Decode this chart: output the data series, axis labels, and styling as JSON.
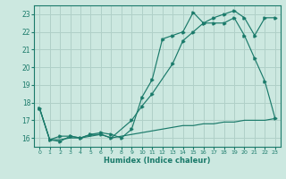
{
  "xlabel": "Humidex (Indice chaleur)",
  "bg_color": "#cce8e0",
  "grid_color": "#b0d0c8",
  "line_color": "#1a7a6a",
  "xlim": [
    -0.5,
    23.5
  ],
  "ylim": [
    15.5,
    23.5
  ],
  "yticks": [
    16,
    17,
    18,
    19,
    20,
    21,
    22,
    23
  ],
  "xticks": [
    0,
    1,
    2,
    3,
    4,
    5,
    6,
    7,
    8,
    9,
    10,
    11,
    12,
    13,
    14,
    15,
    16,
    17,
    18,
    19,
    20,
    21,
    22,
    23
  ],
  "line1_x": [
    0,
    1,
    2,
    3,
    4,
    5,
    6,
    7,
    8,
    9,
    10,
    11,
    12,
    13,
    14,
    15,
    16,
    17,
    18,
    19,
    20,
    21,
    22,
    23
  ],
  "line1_y": [
    17.7,
    15.9,
    15.8,
    16.1,
    16.0,
    16.2,
    16.3,
    16.2,
    16.0,
    16.5,
    18.3,
    19.3,
    21.6,
    21.8,
    22.0,
    23.1,
    22.5,
    22.5,
    22.5,
    22.8,
    21.8,
    20.5,
    19.2,
    17.1
  ],
  "line2_x": [
    0,
    1,
    2,
    3,
    4,
    5,
    6,
    7,
    9,
    10,
    11,
    13,
    14,
    15,
    16,
    17,
    18,
    19,
    20,
    21,
    22,
    23
  ],
  "line2_y": [
    17.7,
    15.9,
    16.1,
    16.1,
    16.0,
    16.2,
    16.2,
    16.0,
    17.0,
    17.8,
    18.5,
    20.2,
    21.5,
    22.0,
    22.5,
    22.8,
    23.0,
    23.2,
    22.8,
    21.8,
    22.8,
    22.8
  ],
  "line3_x": [
    0,
    1,
    2,
    3,
    4,
    5,
    6,
    7,
    8,
    9,
    10,
    11,
    12,
    13,
    14,
    15,
    16,
    17,
    18,
    19,
    20,
    21,
    22,
    23
  ],
  "line3_y": [
    17.7,
    15.9,
    15.9,
    16.0,
    16.0,
    16.1,
    16.2,
    16.0,
    16.1,
    16.2,
    16.3,
    16.4,
    16.5,
    16.6,
    16.7,
    16.7,
    16.8,
    16.8,
    16.9,
    16.9,
    17.0,
    17.0,
    17.0,
    17.1
  ]
}
